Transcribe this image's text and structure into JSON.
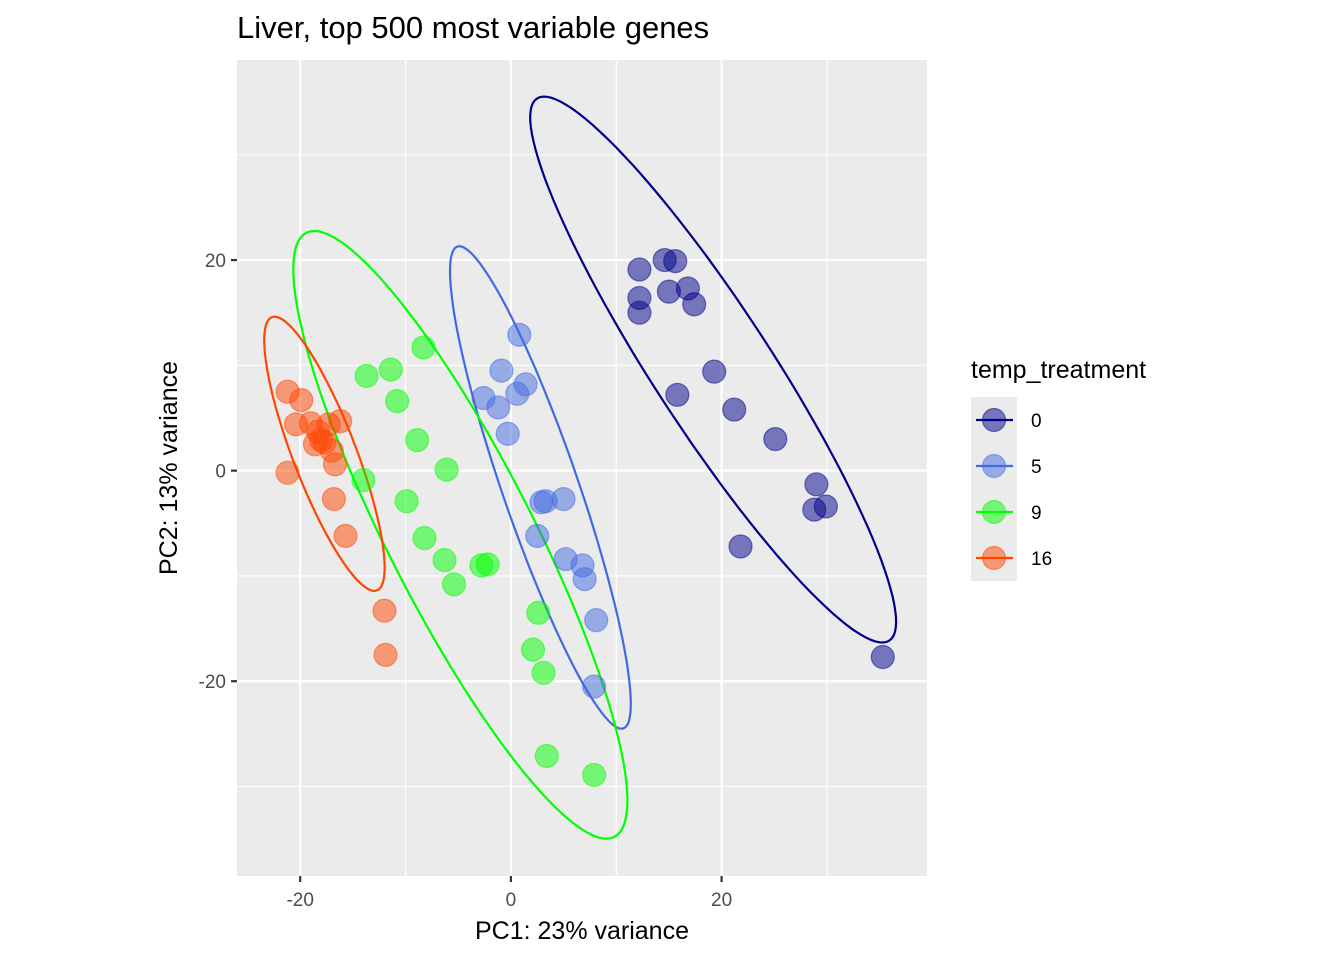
{
  "chart_data": {
    "type": "scatter",
    "title": "Liver, top 500 most variable genes",
    "xlabel": "PC1: 23% variance",
    "ylabel": "PC2: 13% variance",
    "xlim": [
      -26,
      39.5
    ],
    "ylim": [
      -38.5,
      39
    ],
    "xticks": [
      -20,
      0,
      20
    ],
    "xtick_labels": [
      "-20",
      "0",
      "20"
    ],
    "yticks": [
      -20,
      0,
      20
    ],
    "ytick_labels": [
      "-20",
      "0",
      "20"
    ],
    "grid": true,
    "legend": {
      "title": "temp_treatment",
      "position": "right"
    },
    "series": [
      {
        "name": "0",
        "color": "#00008B",
        "points": [
          [
            12.2,
            19.1
          ],
          [
            14.6,
            20.0
          ],
          [
            15.6,
            19.9
          ],
          [
            12.2,
            16.4
          ],
          [
            12.2,
            15.0
          ],
          [
            15.0,
            17.0
          ],
          [
            16.8,
            17.3
          ],
          [
            17.4,
            15.8
          ],
          [
            15.8,
            7.2
          ],
          [
            19.3,
            9.4
          ],
          [
            21.2,
            5.8
          ],
          [
            25.1,
            3.0
          ],
          [
            29.0,
            -1.3
          ],
          [
            28.8,
            -3.7
          ],
          [
            29.9,
            -3.4
          ],
          [
            21.8,
            -7.2
          ],
          [
            35.3,
            -17.7
          ]
        ],
        "ellipse": {
          "center": [
            19.2,
            9.6
          ],
          "semi_major": 30.7,
          "semi_minor": 5.6,
          "angle_deg": -57.0
        }
      },
      {
        "name": "5",
        "color": "#4169E1",
        "points": [
          [
            0.8,
            12.9
          ],
          [
            -0.9,
            9.5
          ],
          [
            -2.6,
            6.9
          ],
          [
            -1.2,
            6.0
          ],
          [
            0.6,
            7.3
          ],
          [
            1.4,
            8.2
          ],
          [
            -0.3,
            3.5
          ],
          [
            2.9,
            -3.0
          ],
          [
            3.3,
            -2.9
          ],
          [
            5.0,
            -2.7
          ],
          [
            2.5,
            -6.2
          ],
          [
            5.2,
            -8.4
          ],
          [
            6.8,
            -9.0
          ],
          [
            7.0,
            -10.3
          ],
          [
            8.1,
            -14.2
          ],
          [
            7.9,
            -20.5
          ]
        ],
        "ellipse": {
          "center": [
            2.8,
            -1.6
          ],
          "semi_major": 24.2,
          "semi_minor": 3.6,
          "angle_deg": -71.0
        }
      },
      {
        "name": "9",
        "color": "#00FF00",
        "points": [
          [
            -13.7,
            9.0
          ],
          [
            -11.4,
            9.6
          ],
          [
            -8.3,
            11.7
          ],
          [
            -10.8,
            6.6
          ],
          [
            -8.9,
            2.9
          ],
          [
            -6.1,
            0.1
          ],
          [
            -14.0,
            -0.9
          ],
          [
            -9.9,
            -2.9
          ],
          [
            -8.2,
            -6.4
          ],
          [
            -6.3,
            -8.5
          ],
          [
            -5.4,
            -10.8
          ],
          [
            -2.8,
            -9.0
          ],
          [
            -2.2,
            -8.9
          ],
          [
            2.6,
            -13.5
          ],
          [
            2.1,
            -17.0
          ],
          [
            3.1,
            -19.2
          ],
          [
            3.4,
            -27.1
          ],
          [
            7.9,
            -28.9
          ]
        ],
        "ellipse": {
          "center": [
            -4.8,
            -6.1
          ],
          "semi_major": 32.2,
          "semi_minor": 6.9,
          "angle_deg": -63.0
        }
      },
      {
        "name": "16",
        "color": "#FF4500",
        "points": [
          [
            -21.2,
            7.5
          ],
          [
            -19.9,
            6.7
          ],
          [
            -20.4,
            4.4
          ],
          [
            -19.0,
            4.5
          ],
          [
            -16.2,
            4.7
          ],
          [
            -17.3,
            4.4
          ],
          [
            -18.3,
            3.7
          ],
          [
            -18.0,
            2.9
          ],
          [
            -18.6,
            2.5
          ],
          [
            -17.7,
            2.7
          ],
          [
            -17.0,
            1.9
          ],
          [
            -16.7,
            0.6
          ],
          [
            -21.2,
            -0.2
          ],
          [
            -16.8,
            -2.7
          ],
          [
            -15.7,
            -6.2
          ],
          [
            -12.0,
            -13.3
          ],
          [
            -11.9,
            -17.5
          ]
        ],
        "ellipse": {
          "center": [
            -17.7,
            1.6
          ],
          "semi_major": 13.9,
          "semi_minor": 3.0,
          "angle_deg": -69.0
        }
      }
    ]
  }
}
